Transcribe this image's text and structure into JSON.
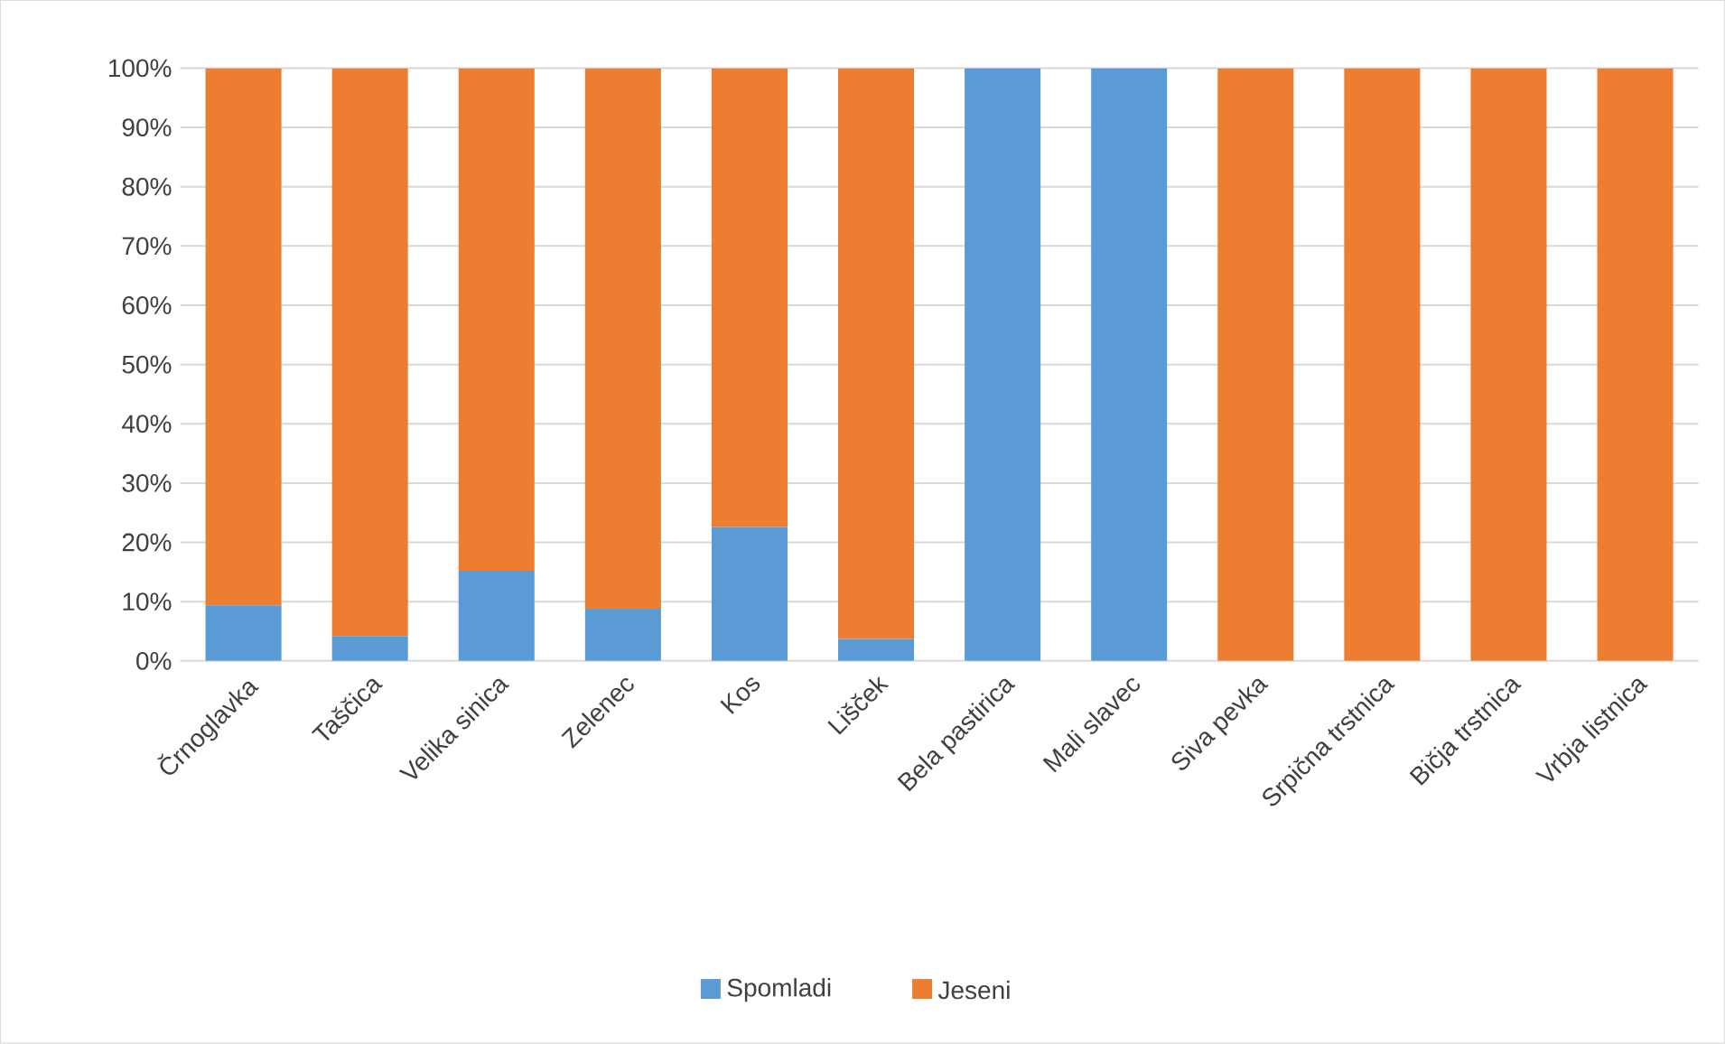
{
  "chart_data": {
    "type": "bar",
    "stacked": true,
    "categories": [
      "Črnoglavka",
      "Taščica",
      "Velika sinica",
      "Zelenec",
      "Kos",
      "Lišček",
      "Bela pastirica",
      "Mali slavec",
      "Siva pevka",
      "Srpična trstnica",
      "Bičja trstnica",
      "Vrbja listnica"
    ],
    "series": [
      {
        "name": "Spomladi",
        "color": "#5b9bd5",
        "values": [
          9.4,
          4.2,
          15.2,
          8.8,
          22.6,
          3.7,
          100,
          100,
          0,
          0,
          0,
          0
        ]
      },
      {
        "name": "Jeseni",
        "color": "#ed7d31",
        "values": [
          90.6,
          95.8,
          84.8,
          91.2,
          77.4,
          96.3,
          0,
          0,
          100,
          100,
          100,
          100
        ]
      }
    ],
    "ylim": [
      0,
      100
    ],
    "yticks": [
      {
        "value": 0,
        "label": "0%"
      },
      {
        "value": 10,
        "label": "10%"
      },
      {
        "value": 20,
        "label": "20%"
      },
      {
        "value": 30,
        "label": "30%"
      },
      {
        "value": 40,
        "label": "40%"
      },
      {
        "value": 50,
        "label": "50%"
      },
      {
        "value": 60,
        "label": "60%"
      },
      {
        "value": 70,
        "label": "70%"
      },
      {
        "value": 80,
        "label": "80%"
      },
      {
        "value": 90,
        "label": "90%"
      },
      {
        "value": 100,
        "label": "100%"
      }
    ],
    "grid": "y",
    "legend": "bottom"
  }
}
